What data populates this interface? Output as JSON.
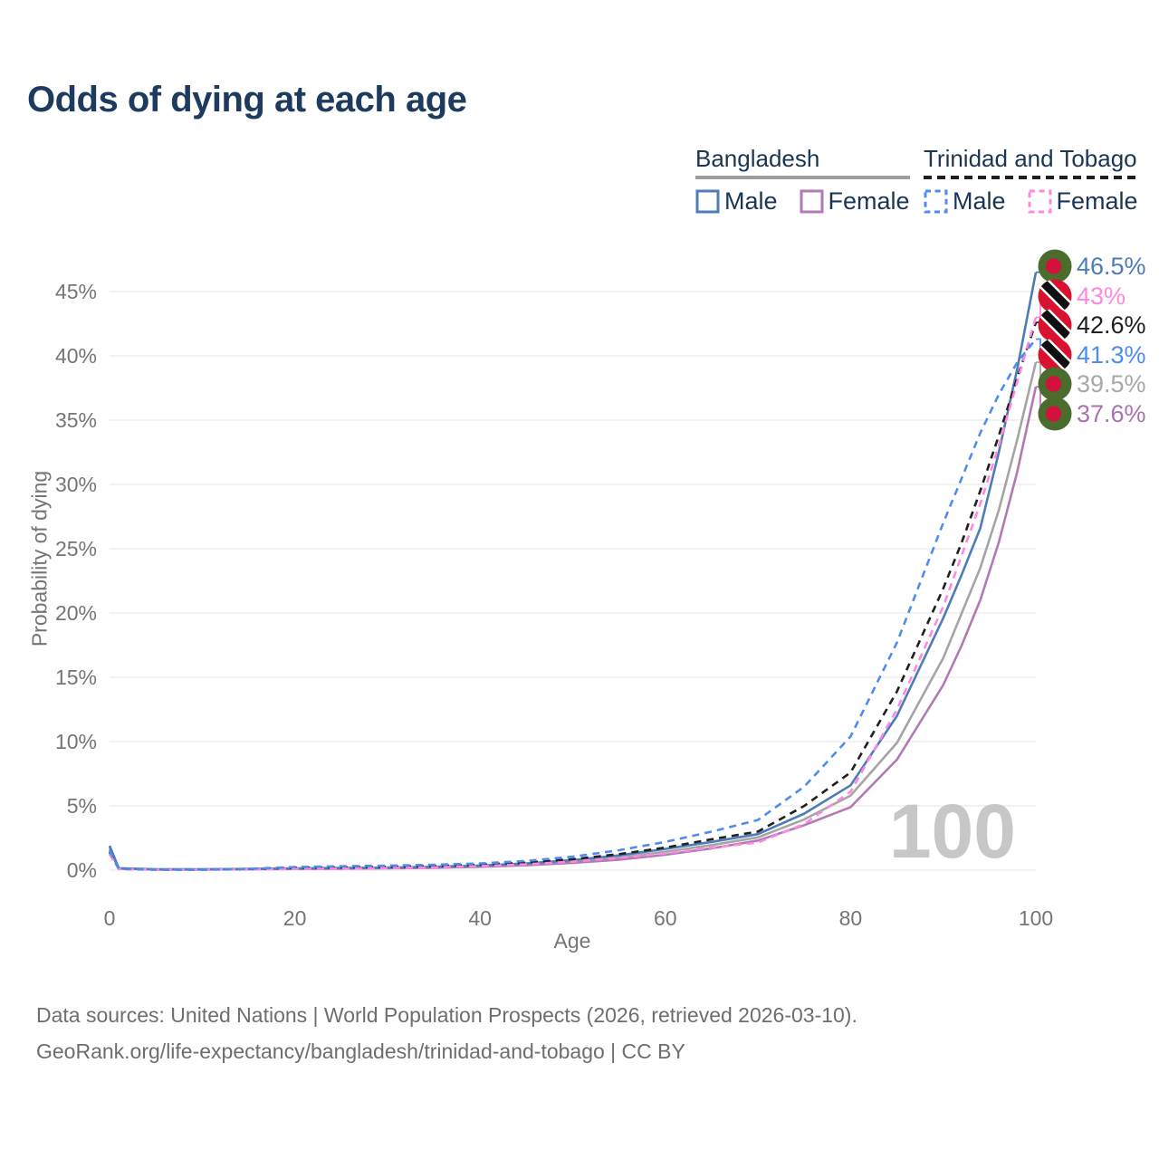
{
  "title": "Odds of dying at each age",
  "watermark_age_cursor": "100",
  "footer": {
    "line1": "Data sources: United Nations | World Population Prospects (2026, retrieved 2026-03-10).",
    "line2": "GeoRank.org/life-expectancy/bangladesh/trinidad-and-tobago | CC BY"
  },
  "legend": {
    "groups": [
      {
        "name": "Bangladesh",
        "underline": "solid",
        "underline_color": "#9e9e9e",
        "items": [
          {
            "label": "Male",
            "color": "#4d7cb6",
            "dashed": false
          },
          {
            "label": "Female",
            "color": "#b279b4",
            "dashed": false
          }
        ]
      },
      {
        "name": "Trinidad and Tobago",
        "underline": "dashed",
        "underline_color": "#1f1f1f",
        "items": [
          {
            "label": "Male",
            "color": "#4f8cf0",
            "dashed": true
          },
          {
            "label": "Female",
            "color": "#ff87e1",
            "dashed": true
          }
        ]
      }
    ]
  },
  "chart_data": {
    "type": "line",
    "title": "Odds of dying at each age",
    "xlabel": "Age",
    "ylabel": "Probability of dying",
    "xlim": [
      0,
      100
    ],
    "ylim_percent": [
      0,
      48
    ],
    "grid": "horizontal",
    "legend_position": "top-right",
    "x_ticks": [
      {
        "label": "0",
        "value": 0
      },
      {
        "label": "20",
        "value": 20
      },
      {
        "label": "40",
        "value": 40
      },
      {
        "label": "60",
        "value": 60
      },
      {
        "label": "80",
        "value": 80
      },
      {
        "label": "100",
        "value": 100
      }
    ],
    "y_ticks": [
      {
        "label": "0%",
        "value": 0
      },
      {
        "label": "5%",
        "value": 5
      },
      {
        "label": "10%",
        "value": 10
      },
      {
        "label": "15%",
        "value": 15
      },
      {
        "label": "20%",
        "value": 20
      },
      {
        "label": "25%",
        "value": 25
      },
      {
        "label": "30%",
        "value": 30
      },
      {
        "label": "35%",
        "value": 35
      },
      {
        "label": "40%",
        "value": 40
      },
      {
        "label": "45%",
        "value": 45
      }
    ],
    "x": [
      0,
      1,
      5,
      10,
      15,
      20,
      25,
      30,
      35,
      40,
      45,
      50,
      55,
      60,
      65,
      70,
      75,
      80,
      85,
      90,
      92,
      94,
      96,
      98,
      100
    ],
    "series": [
      {
        "id": "bangladesh-both",
        "country": "Bangladesh",
        "sex": "Both sexes",
        "flag": "bangladesh",
        "color": "#a5a5a5",
        "label_color": "#a8a8a8",
        "dash": false,
        "end_label": "39.5%",
        "values_percent": [
          1.75,
          0.14,
          0.055,
          0.055,
          0.085,
          0.12,
          0.14,
          0.17,
          0.22,
          0.31,
          0.45,
          0.67,
          0.98,
          1.42,
          1.95,
          2.55,
          3.95,
          5.8,
          9.9,
          16.5,
          20.0,
          23.5,
          28.0,
          33.5,
          39.5
        ]
      },
      {
        "id": "bangladesh-female",
        "country": "Bangladesh",
        "sex": "Female",
        "flag": "bangladesh",
        "color": "#b279b4",
        "label_color": "#a873b0",
        "dash": false,
        "end_label": "37.6%",
        "values_percent": [
          1.6,
          0.13,
          0.05,
          0.05,
          0.07,
          0.09,
          0.11,
          0.14,
          0.18,
          0.26,
          0.38,
          0.56,
          0.82,
          1.2,
          1.7,
          2.3,
          3.5,
          4.9,
          8.6,
          14.4,
          17.5,
          21.0,
          25.5,
          31.0,
          37.6
        ]
      },
      {
        "id": "bangladesh-male",
        "country": "Bangladesh",
        "sex": "Male",
        "flag": "bangladesh",
        "color": "#4d7cb6",
        "label_color": "#4d7cb6",
        "dash": false,
        "end_label": "46.5%",
        "values_percent": [
          1.9,
          0.15,
          0.06,
          0.06,
          0.1,
          0.14,
          0.17,
          0.2,
          0.26,
          0.36,
          0.52,
          0.78,
          1.15,
          1.65,
          2.2,
          2.8,
          4.4,
          6.6,
          12.0,
          19.6,
          23.0,
          26.6,
          32.5,
          39.0,
          46.5
        ]
      },
      {
        "id": "trinidad-and-tobago-both",
        "country": "Trinidad and Tobago",
        "sex": "Both sexes",
        "flag": "trinidad-and-tobago",
        "color": "#202020",
        "label_color": "#202020",
        "dash": true,
        "end_label": "42.6%",
        "values_percent": [
          1.4,
          0.1,
          0.04,
          0.04,
          0.08,
          0.18,
          0.21,
          0.26,
          0.32,
          0.42,
          0.59,
          0.85,
          1.25,
          1.75,
          2.4,
          3.0,
          5.0,
          7.6,
          13.9,
          21.9,
          25.5,
          29.5,
          33.8,
          38.3,
          42.6
        ]
      },
      {
        "id": "trinidad-and-tobago-female",
        "country": "Trinidad and Tobago",
        "sex": "Female",
        "flag": "trinidad-and-tobago",
        "color": "#ff87e1",
        "label_color": "#ff87e1",
        "dash": true,
        "end_label": "43%",
        "values_percent": [
          1.25,
          0.09,
          0.035,
          0.035,
          0.06,
          0.1,
          0.12,
          0.16,
          0.22,
          0.32,
          0.46,
          0.66,
          0.95,
          1.3,
          1.75,
          2.15,
          3.6,
          6.1,
          12.5,
          20.5,
          24.5,
          28.5,
          33.0,
          38.0,
          43.0
        ]
      },
      {
        "id": "trinidad-and-tobago-male",
        "country": "Trinidad and Tobago",
        "sex": "Male",
        "flag": "trinidad-and-tobago",
        "color": "#4f8cf0",
        "label_color": "#4f8cf0",
        "dash": true,
        "end_label": "41.3%",
        "values_percent": [
          1.5,
          0.1,
          0.04,
          0.04,
          0.1,
          0.25,
          0.3,
          0.35,
          0.42,
          0.52,
          0.72,
          1.05,
          1.55,
          2.2,
          3.0,
          3.9,
          6.5,
          10.4,
          17.7,
          27.0,
          30.5,
          34.0,
          37.0,
          39.5,
          41.3
        ]
      }
    ]
  }
}
